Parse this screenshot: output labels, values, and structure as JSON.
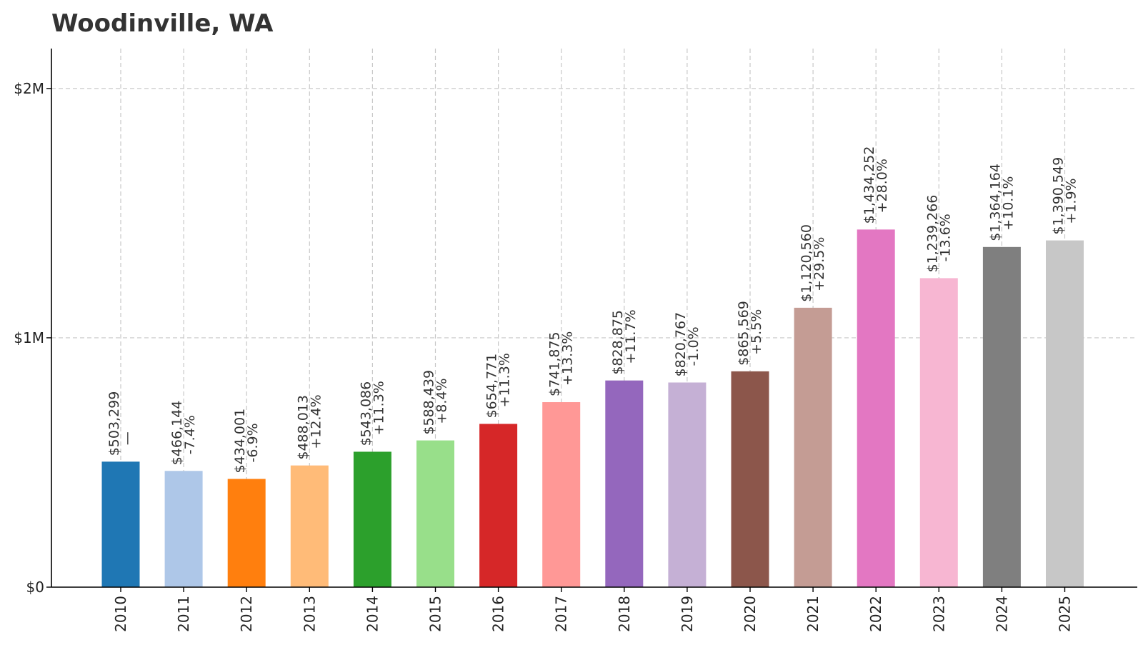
{
  "chart_data": {
    "type": "bar",
    "title": "Woodinville, WA",
    "xlabel": "",
    "ylabel": "",
    "ylim": [
      0,
      2160000
    ],
    "grid": true,
    "legend": "none",
    "categories": [
      "2010",
      "2011",
      "2012",
      "2013",
      "2014",
      "2015",
      "2016",
      "2017",
      "2018",
      "2019",
      "2020",
      "2021",
      "2022",
      "2023",
      "2024",
      "2025"
    ],
    "values": [
      503299,
      466144,
      434001,
      488013,
      543086,
      588439,
      654771,
      741875,
      828875,
      820767,
      865569,
      1120560,
      1434252,
      1239266,
      1364164,
      1390549
    ],
    "value_labels": [
      "$503,299",
      "$466,144",
      "$434,001",
      "$488,013",
      "$543,086",
      "$588,439",
      "$654,771",
      "$741,875",
      "$828,875",
      "$820,767",
      "$865,569",
      "$1,120,560",
      "$1,434,252",
      "$1,239,266",
      "$1,364,164",
      "$1,390,549"
    ],
    "change_labels": [
      "—",
      "-7.4%",
      "-6.9%",
      "+12.4%",
      "+11.3%",
      "+8.4%",
      "+11.3%",
      "+13.3%",
      "+11.7%",
      "-1.0%",
      "+5.5%",
      "+29.5%",
      "+28.0%",
      "-13.6%",
      "+10.1%",
      "+1.9%"
    ],
    "colors": [
      "#1f77b4",
      "#aec7e8",
      "#ff7f0e",
      "#ffbb78",
      "#2ca02c",
      "#98df8a",
      "#d62728",
      "#ff9896",
      "#9467bd",
      "#c5b0d5",
      "#8c564b",
      "#c49c94",
      "#e377c2",
      "#f7b6d2",
      "#7f7f7f",
      "#c7c7c7"
    ],
    "y_ticks": [
      {
        "value": 0,
        "label": "$0"
      },
      {
        "value": 1000000,
        "label": "$1M"
      },
      {
        "value": 2000000,
        "label": "$2M"
      }
    ]
  }
}
